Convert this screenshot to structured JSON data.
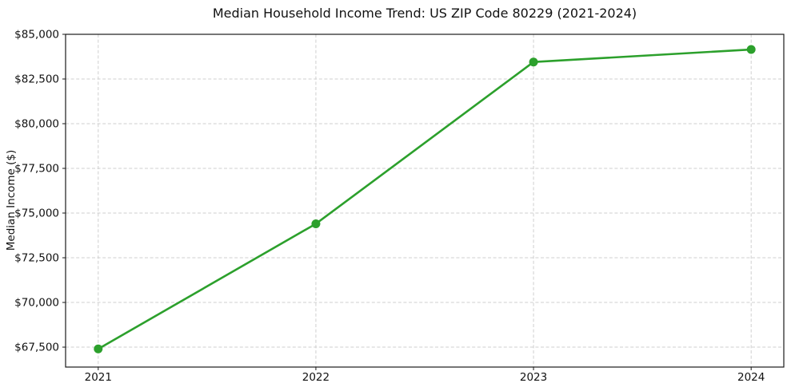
{
  "chart_data": {
    "type": "line",
    "title": "Median Household Income Trend: US ZIP Code 80229 (2021-2024)",
    "xlabel": "",
    "ylabel": "Median Income ($)",
    "x": [
      2021,
      2022,
      2023,
      2024
    ],
    "x_tick_labels": [
      "2021",
      "2022",
      "2023",
      "2024"
    ],
    "series": [
      {
        "values": [
          67400,
          74400,
          83450,
          84150
        ],
        "color": "#2ca02c",
        "marker": "circle",
        "line_width": 2.6,
        "marker_radius": 5.5
      }
    ],
    "y_ticks": [
      {
        "value": 67500,
        "label": "$67,500"
      },
      {
        "value": 70000,
        "label": "$70,000"
      },
      {
        "value": 72500,
        "label": "$72,500"
      },
      {
        "value": 75000,
        "label": "$75,000"
      },
      {
        "value": 77500,
        "label": "$77,500"
      },
      {
        "value": 80000,
        "label": "$80,000"
      },
      {
        "value": 82500,
        "label": "$82,500"
      },
      {
        "value": 85000,
        "label": "$85,000"
      }
    ],
    "xlim": [
      2020.85,
      2024.15
    ],
    "ylim": [
      66385,
      85000
    ],
    "grid": {
      "visible": true,
      "style": "dashed",
      "color": "#cfcfcf"
    },
    "legend": {
      "visible": false
    }
  },
  "figure": {
    "background": "#ffffff",
    "spine_color": "#1a1a1a",
    "text_color": "#111111"
  }
}
